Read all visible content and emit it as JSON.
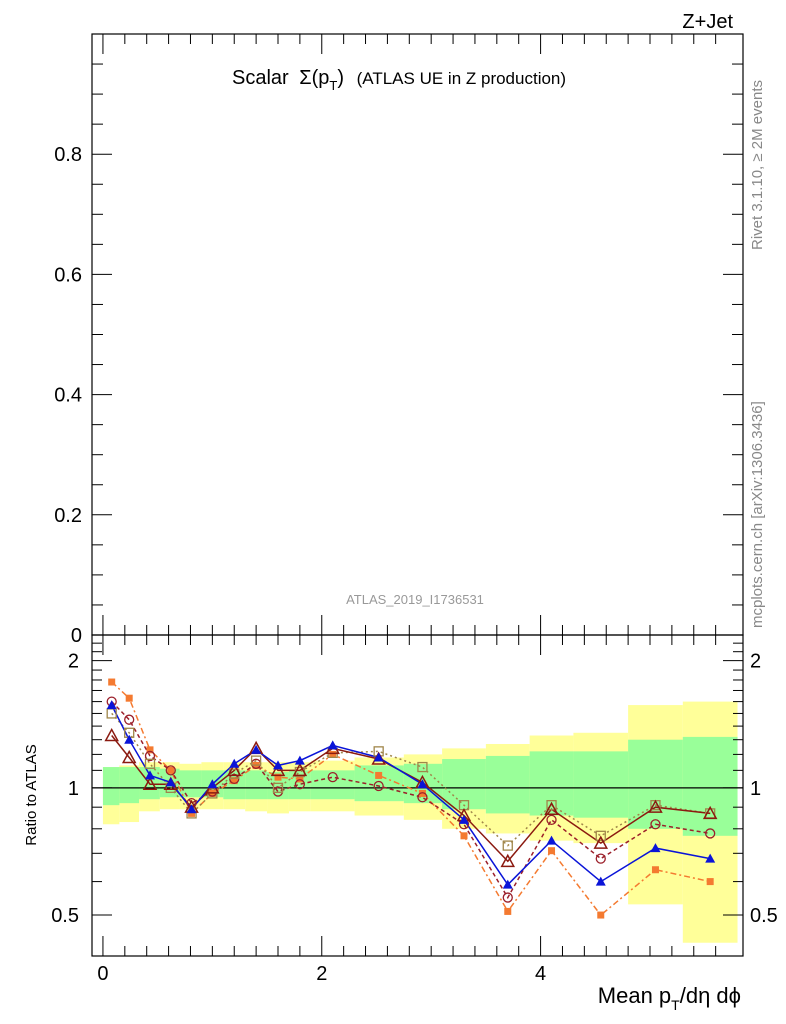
{
  "header": {
    "process": "Z+Jet",
    "title_scalar": "Scalar",
    "title_sigma": "Σ(p",
    "title_sub": "T",
    "title_close": ")",
    "title_rest": "(ATLAS UE in Z production)",
    "analysis_id": "ATLAS_2019_I1736531",
    "side_text_top": "Rivet 3.1.10, ≥ 2M events",
    "side_text_bottom": "mcplots.cern.ch [arXiv:1306.3436]"
  },
  "chart_data": {
    "type": "line",
    "main_panel": {
      "ylim": [
        0,
        1.0
      ],
      "y_ticks": [
        0,
        0.2,
        0.4,
        0.6,
        0.8
      ],
      "y_tick_labels": [
        "0",
        "0.2",
        "0.4",
        "0.6",
        "0.8"
      ]
    },
    "ratio_panel": {
      "ylabel": "Ratio to ATLAS",
      "ylim": [
        0.4,
        2.3
      ],
      "log_scale": true,
      "y_ticks": [
        0.5,
        1,
        2
      ],
      "y_tick_labels": [
        "0.5",
        "1",
        "2"
      ],
      "reference": 1.0
    },
    "xlim": [
      -0.1,
      5.85
    ],
    "x_ticks": [
      0,
      2,
      4
    ],
    "x_tick_labels": [
      "0",
      "2",
      "4"
    ],
    "xlabel_main": "Mean p",
    "xlabel_sub": "T",
    "xlabel_rest": "/dη dϕ",
    "bins": [
      {
        "lo": 0.0,
        "hi": 0.15,
        "g_lo": 0.91,
        "g_hi": 1.12,
        "y_lo": 0.82,
        "y_hi": 1.12
      },
      {
        "lo": 0.15,
        "hi": 0.33,
        "g_lo": 0.92,
        "g_hi": 1.12,
        "y_lo": 0.83,
        "y_hi": 1.13
      },
      {
        "lo": 0.33,
        "hi": 0.52,
        "g_lo": 0.94,
        "g_hi": 1.12,
        "y_lo": 0.88,
        "y_hi": 1.15
      },
      {
        "lo": 0.52,
        "hi": 0.7,
        "g_lo": 0.95,
        "g_hi": 1.11,
        "y_lo": 0.89,
        "y_hi": 1.15
      },
      {
        "lo": 0.7,
        "hi": 0.9,
        "g_lo": 0.95,
        "g_hi": 1.1,
        "y_lo": 0.89,
        "y_hi": 1.14
      },
      {
        "lo": 0.9,
        "hi": 1.1,
        "g_lo": 0.95,
        "g_hi": 1.1,
        "y_lo": 0.89,
        "y_hi": 1.15
      },
      {
        "lo": 1.1,
        "hi": 1.3,
        "g_lo": 0.94,
        "g_hi": 1.1,
        "y_lo": 0.89,
        "y_hi": 1.15
      },
      {
        "lo": 1.3,
        "hi": 1.5,
        "g_lo": 0.94,
        "g_hi": 1.1,
        "y_lo": 0.88,
        "y_hi": 1.15
      },
      {
        "lo": 1.5,
        "hi": 1.7,
        "g_lo": 0.94,
        "g_hi": 1.09,
        "y_lo": 0.87,
        "y_hi": 1.15
      },
      {
        "lo": 1.7,
        "hi": 1.9,
        "g_lo": 0.94,
        "g_hi": 1.1,
        "y_lo": 0.88,
        "y_hi": 1.15
      },
      {
        "lo": 1.9,
        "hi": 2.3,
        "g_lo": 0.94,
        "g_hi": 1.1,
        "y_lo": 0.88,
        "y_hi": 1.16
      },
      {
        "lo": 2.3,
        "hi": 2.75,
        "g_lo": 0.93,
        "g_hi": 1.13,
        "y_lo": 0.86,
        "y_hi": 1.18
      },
      {
        "lo": 2.75,
        "hi": 3.1,
        "g_lo": 0.92,
        "g_hi": 1.14,
        "y_lo": 0.84,
        "y_hi": 1.2
      },
      {
        "lo": 3.1,
        "hi": 3.5,
        "g_lo": 0.89,
        "g_hi": 1.17,
        "y_lo": 0.8,
        "y_hi": 1.24
      },
      {
        "lo": 3.5,
        "hi": 3.9,
        "g_lo": 0.87,
        "g_hi": 1.19,
        "y_lo": 0.78,
        "y_hi": 1.27
      },
      {
        "lo": 3.9,
        "hi": 4.3,
        "g_lo": 0.86,
        "g_hi": 1.22,
        "y_lo": 0.75,
        "y_hi": 1.33
      },
      {
        "lo": 4.3,
        "hi": 4.8,
        "g_lo": 0.85,
        "g_hi": 1.22,
        "y_lo": 0.74,
        "y_hi": 1.35
      },
      {
        "lo": 4.8,
        "hi": 5.3,
        "g_lo": 0.8,
        "g_hi": 1.3,
        "y_lo": 0.53,
        "y_hi": 1.57
      },
      {
        "lo": 5.3,
        "hi": 5.8,
        "g_lo": 0.77,
        "g_hi": 1.32,
        "y_lo": 0.43,
        "y_hi": 1.6
      }
    ],
    "x_points": [
      0.08,
      0.24,
      0.43,
      0.62,
      0.81,
      1.0,
      1.2,
      1.4,
      1.6,
      1.8,
      2.1,
      2.52,
      2.92,
      3.3,
      3.7,
      4.1,
      4.55,
      5.05,
      5.55
    ],
    "series": [
      {
        "color": "#f47a30",
        "dash": "6,3,2,3",
        "marker": "square-filled",
        "values": [
          1.78,
          1.63,
          1.23,
          1.1,
          0.87,
          0.97,
          1.04,
          1.13,
          1.06,
          1.05,
          1.2,
          1.07,
          0.97,
          0.77,
          0.51,
          0.71,
          0.5,
          0.64,
          0.6
        ]
      },
      {
        "color": "#9b1f2a",
        "dash": "4,3",
        "marker": "circle-open",
        "values": [
          1.6,
          1.45,
          1.19,
          1.1,
          0.92,
          0.98,
          1.05,
          1.14,
          0.98,
          1.02,
          1.06,
          1.01,
          0.95,
          0.82,
          0.55,
          0.84,
          0.68,
          0.82,
          0.78
        ]
      },
      {
        "color": "#a0864a",
        "dash": "2,3",
        "marker": "square-open",
        "values": [
          1.5,
          1.35,
          1.14,
          1.0,
          0.87,
          0.97,
          1.08,
          1.16,
          1.0,
          1.09,
          1.21,
          1.22,
          1.12,
          0.91,
          0.73,
          0.91,
          0.77,
          0.91,
          0.87
        ]
      },
      {
        "color": "#8b1a10",
        "dash": "",
        "marker": "triangle-open",
        "values": [
          1.33,
          1.18,
          1.02,
          1.02,
          0.9,
          1.0,
          1.1,
          1.24,
          1.1,
          1.1,
          1.24,
          1.17,
          1.03,
          0.86,
          0.67,
          0.89,
          0.74,
          0.9,
          0.87
        ]
      },
      {
        "color": "#0a14d8",
        "dash": "",
        "marker": "triangle-filled",
        "values": [
          1.57,
          1.3,
          1.07,
          1.03,
          0.89,
          1.02,
          1.14,
          1.23,
          1.13,
          1.16,
          1.26,
          1.18,
          1.02,
          0.84,
          0.59,
          0.75,
          0.6,
          0.72,
          0.68
        ]
      }
    ]
  }
}
